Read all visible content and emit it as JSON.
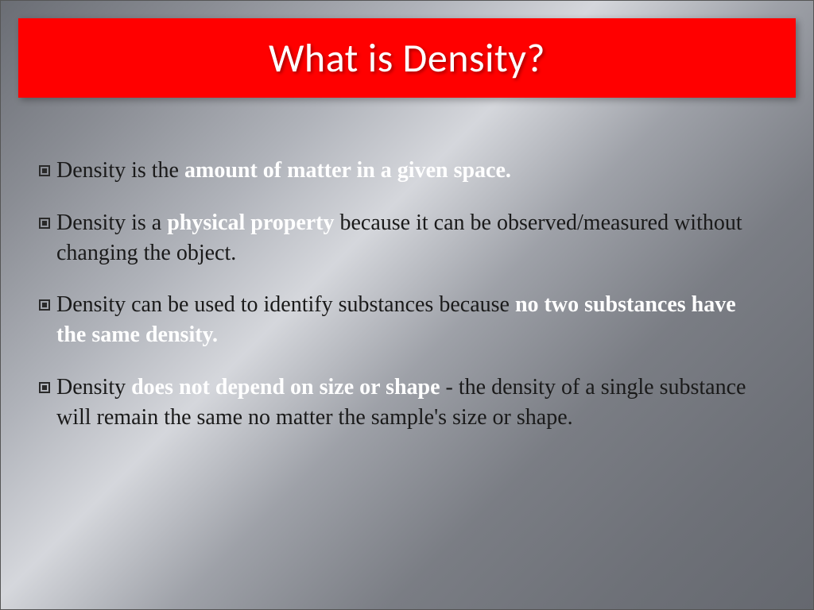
{
  "slide": {
    "title": "What is Density?",
    "title_bg_color": "#ff0000",
    "title_text_color": "#ffffff",
    "title_fontsize": 50,
    "body_fontsize": 28,
    "body_text_color": "#1a1a1a",
    "highlight_color": "#ffffff",
    "bullets": [
      {
        "parts": [
          {
            "text": "Density is the ",
            "bold": false
          },
          {
            "text": "amount of matter in a given space.",
            "bold": true
          }
        ]
      },
      {
        "parts": [
          {
            "text": "Density is a ",
            "bold": false
          },
          {
            "text": "physical property ",
            "bold": true
          },
          {
            "text": "because it can be observed/measured without changing the object.",
            "bold": false
          }
        ]
      },
      {
        "parts": [
          {
            "text": "Density can be used to identify substances because ",
            "bold": false
          },
          {
            "text": "no two substances have the same density.",
            "bold": true
          }
        ]
      },
      {
        "parts": [
          {
            "text": "Density ",
            "bold": false
          },
          {
            "text": "does not depend on size or shape ",
            "bold": true
          },
          {
            "text": "- the density of a single substance will remain the same no matter the sample's size or shape.",
            "bold": false
          }
        ]
      }
    ]
  }
}
